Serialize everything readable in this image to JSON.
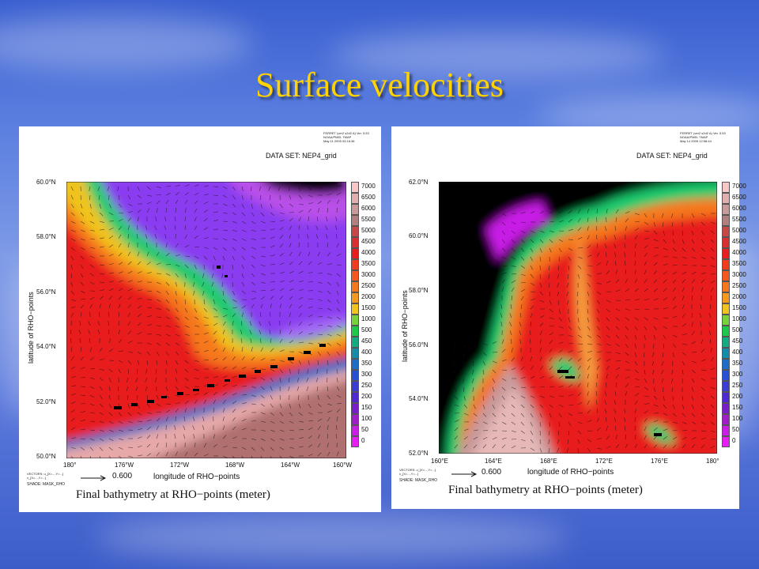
{
  "slide": {
    "title": "Surface velocities"
  },
  "colors": {
    "title": "#ffd200",
    "land": "#000000"
  },
  "chart_data": [
    {
      "type": "heatmap",
      "ferret_header": [
        "FERRET (ver2 s2d2 A) Ver. 5.53",
        "NOAA/PMEL TMAP",
        "May 11 2005 03:16:36"
      ],
      "dataset_label": "DATA SET: NEP4_grid",
      "ylabel": "latitude of RHO−points",
      "xlabel": "longitude of RHO−points",
      "yticks": [
        "60.0°N",
        "58.0°N",
        "56.0°N",
        "54.0°N",
        "52.0°N",
        "50.0°N"
      ],
      "xticks": [
        "180°",
        "176°W",
        "172°W",
        "168°W",
        "164°W",
        "160°W"
      ],
      "vector_scale": "0.600",
      "vector_note": [
        "VECTORS: u_[X=...,Y=...]",
        "v_[X=...,Y=...]"
      ],
      "shade_label": "SHADE: MASK_RHO",
      "caption": "Final bathymetry at RHO−points (meter)",
      "colorbar_levels": [
        "7000",
        "6500",
        "6000",
        "5500",
        "5000",
        "4500",
        "4000",
        "3500",
        "3000",
        "2500",
        "2000",
        "1500",
        "1000",
        "500",
        "450",
        "400",
        "350",
        "300",
        "250",
        "200",
        "150",
        "100",
        "50",
        "0"
      ]
    },
    {
      "type": "heatmap",
      "ferret_header": [
        "FERRET (ver2 s2d2 A) Ver. 5.53",
        "NOAA/PMEL TMAP",
        "May 14 2005 12:58:44"
      ],
      "dataset_label": "DATA SET: NEP4_grid",
      "ylabel": "latitude of RHO−points",
      "xlabel": "longitude of RHO−points",
      "yticks": [
        "62.0°N",
        "60.0°N",
        "58.0°N",
        "56.0°N",
        "54.0°N",
        "52.0°N"
      ],
      "xticks": [
        "160°E",
        "164°E",
        "168°E",
        "172°E",
        "176°E",
        "180°"
      ],
      "vector_scale": "0.600",
      "vector_note": [
        "VECTORS: u_[X=...,Y=...]",
        "v_[X=...,Y=...]"
      ],
      "shade_label": "SHADE: MASK_RHO",
      "caption": "Final bathymetry at RHO−points (meter)",
      "colorbar_levels": [
        "7000",
        "6500",
        "6000",
        "5500",
        "5000",
        "4500",
        "4000",
        "3500",
        "3000",
        "2500",
        "2000",
        "1500",
        "1000",
        "500",
        "450",
        "400",
        "350",
        "300",
        "250",
        "200",
        "150",
        "100",
        "50",
        "0"
      ]
    }
  ]
}
